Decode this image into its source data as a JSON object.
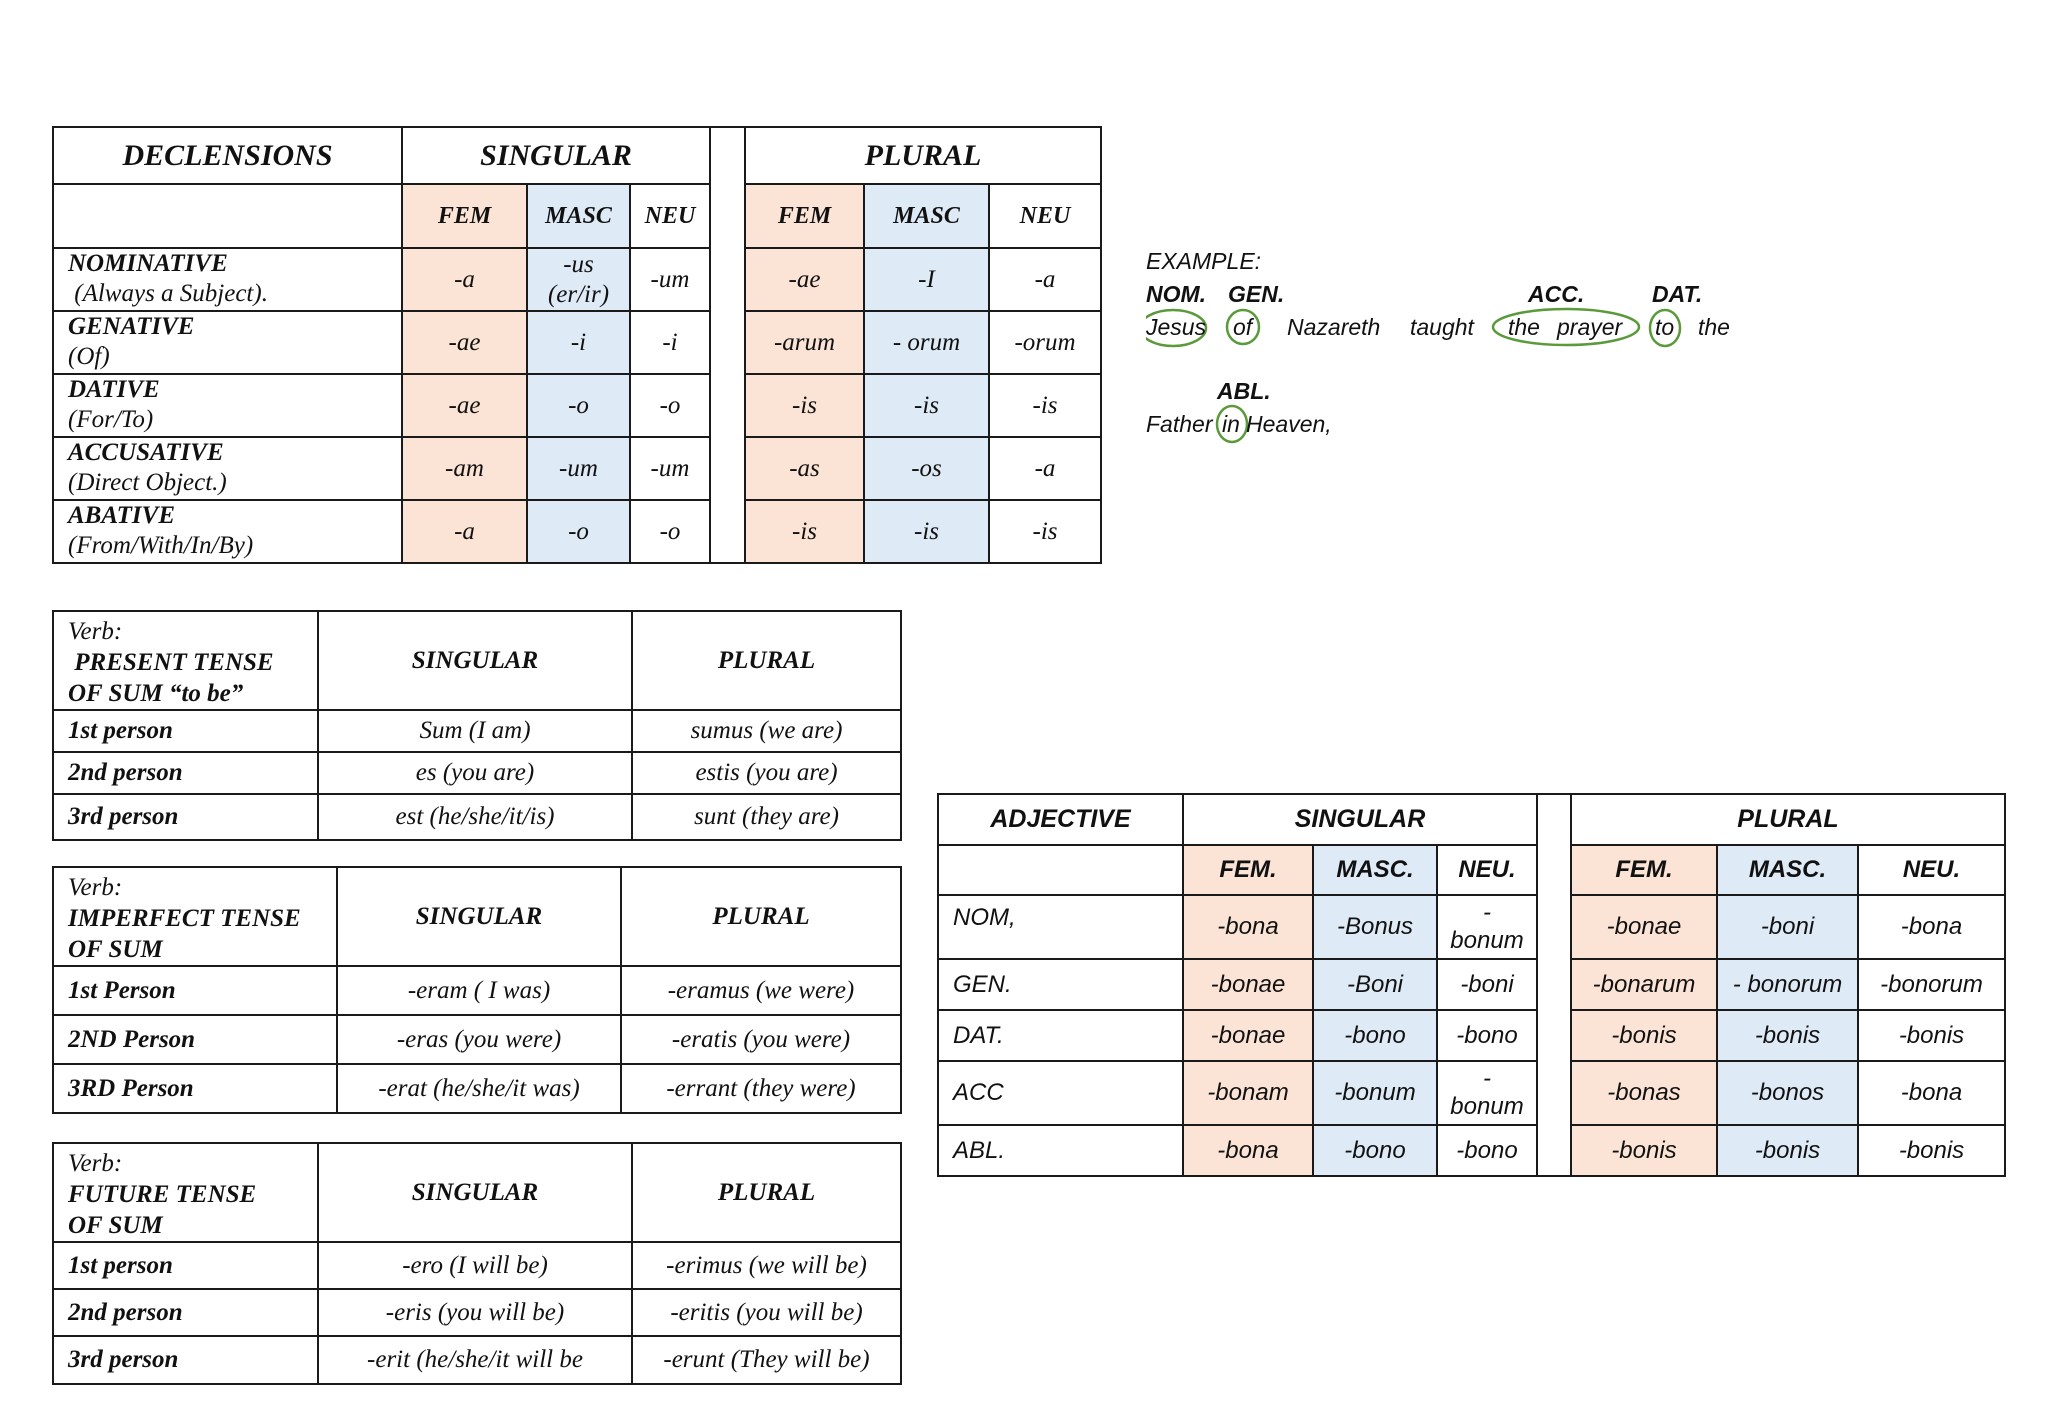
{
  "declensions": {
    "title": "DECLENSIONS",
    "singular": "SINGULAR",
    "plural": "PLURAL",
    "genders": [
      "FEM",
      "MASC",
      "NEU",
      "FEM",
      "MASC",
      "NEU"
    ],
    "rows": [
      {
        "case": "NOMINATIVE",
        "desc": " (Always a Subject).",
        "values": [
          "-a",
          "-us\n(er/ir)",
          "-um",
          "-ae",
          "-I",
          "-a"
        ]
      },
      {
        "case": "GENATIVE",
        "desc": "(Of)",
        "values": [
          "-ae",
          "-i",
          "-i",
          "-arum",
          "- orum",
          "-orum"
        ]
      },
      {
        "case": "DATIVE",
        "desc": "(For/To)",
        "values": [
          "-ae",
          "-o",
          "-o",
          "-is",
          "-is",
          "-is"
        ]
      },
      {
        "case": "ACCUSATIVE",
        "desc": "(Direct Object.)",
        "values": [
          "-am",
          "-um",
          "-um",
          "-as",
          "-os",
          "-a"
        ]
      },
      {
        "case": "ABATIVE",
        "desc": "(From/With/In/By)",
        "values": [
          "-a",
          "-o",
          "-o",
          "-is",
          "-is",
          "-is"
        ]
      }
    ]
  },
  "verb_present": {
    "label": "Verb:",
    "tense": " PRESENT TENSE",
    "of": "OF SUM “to be”",
    "singular": "SINGULAR",
    "plural": "PLURAL",
    "rows": [
      {
        "person": "1st person",
        "singular": "Sum (I am)",
        "plural": "sumus (we are)"
      },
      {
        "person": "2nd person",
        "singular": "es (you are)",
        "plural": "estis (you are)"
      },
      {
        "person": "3rd person",
        "singular": "est (he/she/it/is)",
        "plural": "sunt (they are)"
      }
    ]
  },
  "verb_imperfect": {
    "label": "Verb:",
    "tense": "IMPERFECT TENSE",
    "of": "OF SUM",
    "singular": "SINGULAR",
    "plural": "PLURAL",
    "rows": [
      {
        "person": "1st Person",
        "singular": "-eram ( I was)",
        "plural": "-eramus (we were)"
      },
      {
        "person": "2ND Person",
        "singular": "-eras (you were)",
        "plural": "-eratis (you were)"
      },
      {
        "person": "3RD Person",
        "singular": "-erat (he/she/it was)",
        "plural": "-errant (they were)"
      }
    ]
  },
  "verb_future": {
    "label": "Verb:",
    "tense": "FUTURE TENSE",
    "of": "OF SUM",
    "singular": "SINGULAR",
    "plural": "PLURAL",
    "rows": [
      {
        "person": "1st person",
        "singular": "-ero (I will be)",
        "plural": "-erimus (we will be)"
      },
      {
        "person": "2nd person",
        "singular": "-eris (you will be)",
        "plural": "-eritis (you will be)"
      },
      {
        "person": "3rd person",
        "singular": "-erit (he/she/it will be",
        "plural": "-erunt (They will be)"
      }
    ]
  },
  "example": {
    "title": "EXAMPLE:",
    "labels": [
      "NOM.",
      "GEN.",
      "ACC.",
      "DAT.",
      "ABL."
    ],
    "line1": [
      "Jesus",
      "of",
      "Nazareth",
      "taught",
      "the",
      "prayer",
      "to",
      "the"
    ],
    "line2": [
      "Father",
      "in",
      "Heaven,"
    ]
  },
  "adjective": {
    "title": "ADJECTIVE",
    "singular": "SINGULAR",
    "plural": "PLURAL",
    "genders": [
      "FEM.",
      "MASC.",
      "NEU.",
      "FEM.",
      "MASC.",
      "NEU."
    ],
    "rows": [
      {
        "case": "NOM,",
        "values": [
          "-bona",
          "-Bonus",
          "-\nbonum",
          "-bonae",
          "-boni",
          "-bona"
        ]
      },
      {
        "case": "GEN.",
        "values": [
          "-bonae",
          "-Boni",
          "-boni",
          "-bonarum",
          "- bonorum",
          "-bonorum"
        ]
      },
      {
        "case": "DAT.",
        "values": [
          "-bonae",
          "-bono",
          "-bono",
          "-bonis",
          "-bonis",
          "-bonis"
        ]
      },
      {
        "case": "ACC",
        "values": [
          "-bonam",
          "-bonum",
          "-\nbonum",
          "-bonas",
          "-bonos",
          "-bona"
        ]
      },
      {
        "case": "ABL.",
        "values": [
          "-bona",
          "-bono",
          "-bono",
          "-bonis",
          "-bonis",
          "-bonis"
        ]
      }
    ]
  },
  "colors": {
    "feminine_fill": "#fbe4d6",
    "masculine_fill": "#deeaf6",
    "circle": "#5b9a3a"
  }
}
